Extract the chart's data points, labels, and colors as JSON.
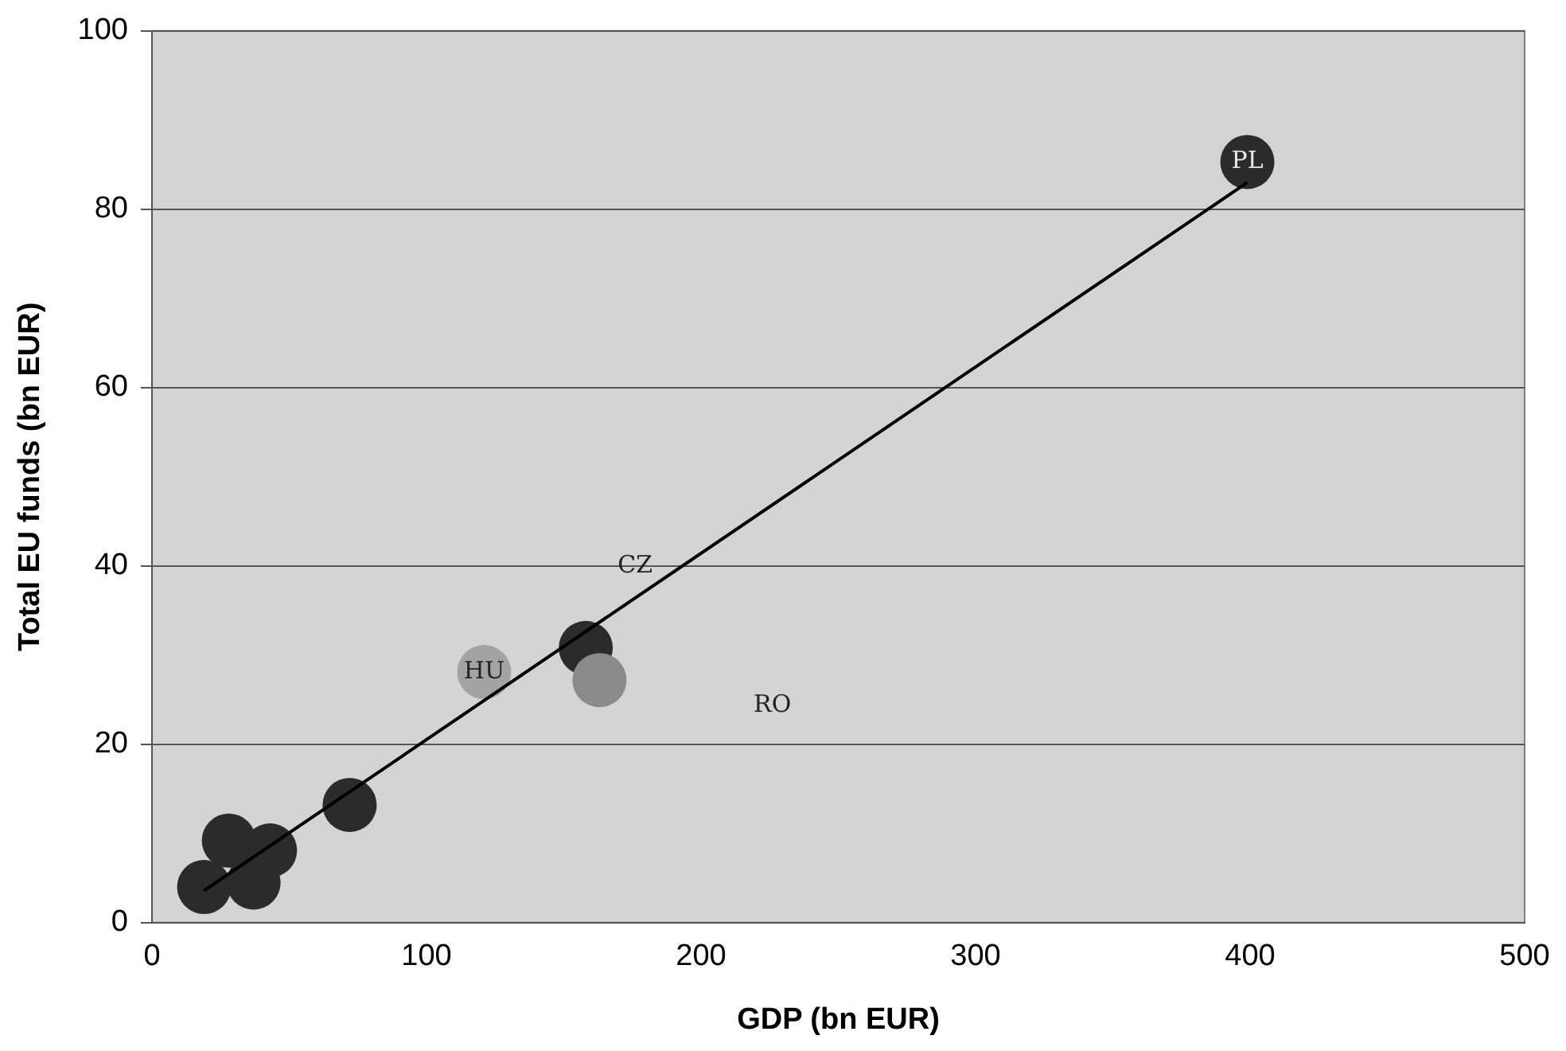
{
  "chart_data": {
    "type": "scatter",
    "xlabel": "GDP (bn EUR)",
    "ylabel": "Total EU funds (bn EUR)",
    "xlim": [
      0,
      500
    ],
    "xticks": [
      0,
      100,
      200,
      300,
      400,
      500
    ],
    "ylim": [
      0,
      100
    ],
    "yticks": [
      0,
      20,
      40,
      60,
      80,
      100
    ],
    "grid": "y",
    "legend": false,
    "marker": "circle",
    "series": [
      {
        "type": "scatter",
        "x": [
          19,
          37,
          28,
          43,
          72,
          121,
          158,
          163,
          399
        ],
        "values": [
          4.0,
          4.5,
          9.2,
          8.1,
          13.2,
          28.1,
          30.8,
          27.2,
          85.3
        ],
        "colors": [
          "#2b2b2b",
          "#2b2b2b",
          "#2b2b2b",
          "#2b2b2b",
          "#2b2b2b",
          "#a3a3a3",
          "#2b2b2b",
          "#8a8a8a",
          "#2b2b2b"
        ]
      },
      {
        "type": "line",
        "x": [
          19,
          399
        ],
        "values": [
          3.6,
          83
        ],
        "color": "#000000",
        "marker": "none"
      }
    ],
    "annotations": [
      {
        "text": "HU",
        "x": 121,
        "y": 28.1
      },
      {
        "text": "PL",
        "x": 399,
        "y": 85.3
      },
      "CZ",
      "RO"
    ]
  }
}
